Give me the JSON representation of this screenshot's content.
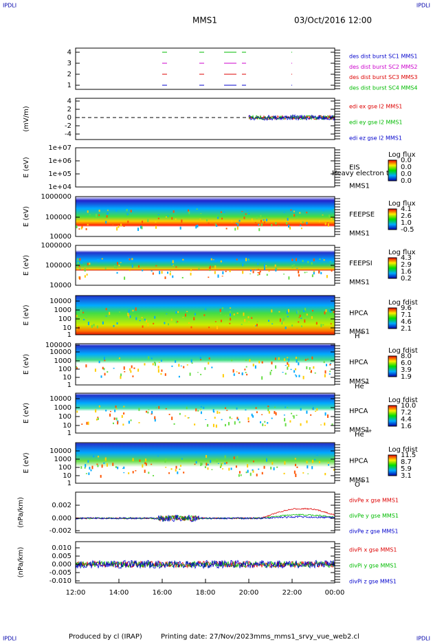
{
  "corner_labels": [
    "IPDLI",
    "IPDLI",
    "IPDLI",
    "IPDLI"
  ],
  "title": "MMS1",
  "date": "03/Oct/2016 12:00",
  "x_ticks": [
    "12:00",
    "14:00",
    "16:00",
    "18:00",
    "20:00",
    "22:00",
    "00:00"
  ],
  "panels": [
    {
      "ylabel": "",
      "yticks": [
        "4",
        "3",
        "2",
        "1"
      ],
      "legend": [
        {
          "text": "des dist burst SC1 MMS1",
          "color": "#0000cc"
        },
        {
          "text": "des dist burst SC2 MMS2",
          "color": "#cc00cc"
        },
        {
          "text": "des dist burst SC3 MMS3",
          "color": "#dd0000"
        },
        {
          "text": "des dist burst SC4 MMS4",
          "color": "#00bb00"
        }
      ]
    },
    {
      "ylabel": "(mV/m)",
      "yticks": [
        "4",
        "2",
        "0",
        "-2",
        "-4"
      ],
      "legend": [
        {
          "text": "edi ex gse l2 MMS1",
          "color": "#dd0000"
        },
        {
          "text": "edi ey gse l2 MMS1",
          "color": "#00bb00"
        },
        {
          "text": "edi ez gse l2 MMS1",
          "color": "#0000cc"
        }
      ]
    },
    {
      "ylabel": "E (eV)",
      "yticks": [
        "1e+07",
        "1e+06",
        "1e+05",
        "1e+04"
      ],
      "right_labels": [
        "EIS",
        "Heavy electron to",
        "MMS1"
      ],
      "colorbar": {
        "title": "Log flux",
        "labels": [
          "0.0",
          "0.0",
          "0.0",
          "0.0"
        ]
      }
    },
    {
      "ylabel": "E (eV)",
      "yticks": [
        "1000000",
        "100000",
        "10000"
      ],
      "right_labels": [
        "FEEPSE",
        "MMS1"
      ],
      "colorbar": {
        "title": "Log flux",
        "labels": [
          "4.1",
          "2.6",
          "1.0",
          "-0.5"
        ]
      }
    },
    {
      "ylabel": "E (eV)",
      "yticks": [
        "1000000",
        "100000",
        "10000"
      ],
      "right_labels": [
        "FEEPSI",
        "MMS1"
      ],
      "colorbar": {
        "title": "Log flux",
        "labels": [
          "4.3",
          "2.9",
          "1.6",
          "0.2"
        ]
      }
    },
    {
      "ylabel": "E (eV)",
      "yticks": [
        "10000",
        "1000",
        "100",
        "10",
        "1"
      ],
      "right_labels": [
        "HPCA",
        "MMS1"
      ],
      "species": {
        "base": "H",
        "charge": "+"
      },
      "colorbar": {
        "title": "Log fdist",
        "labels": [
          "9.6",
          "7.1",
          "4.6",
          "2.1"
        ]
      }
    },
    {
      "ylabel": "E (eV)",
      "yticks": [
        "100000",
        "10000",
        "1000",
        "100",
        "10",
        "1"
      ],
      "right_labels": [
        "HPCA",
        "MMS1"
      ],
      "species": {
        "base": "He",
        "charge": "+"
      },
      "colorbar": {
        "title": "Log fdist",
        "labels": [
          "8.0",
          "6.0",
          "3.9",
          "1.9"
        ]
      }
    },
    {
      "ylabel": "E (eV)",
      "yticks": [
        "10000",
        "1000",
        "100",
        "10",
        "1"
      ],
      "right_labels": [
        "HPCA",
        "MMS1"
      ],
      "species": {
        "base": "He",
        "charge": "++"
      },
      "colorbar": {
        "title": "Log fdist",
        "labels": [
          "10.0",
          "7.2",
          "4.4",
          "1.6"
        ]
      }
    },
    {
      "ylabel": "E (eV)",
      "yticks": [
        "10000",
        "1000",
        "100",
        "10",
        "1"
      ],
      "right_labels": [
        "HPCA",
        "MMS1"
      ],
      "species": {
        "base": "O",
        "charge": "+"
      },
      "colorbar": {
        "title": "Log fdist",
        "labels": [
          "11.5",
          "8.7",
          "5.9",
          "3.1"
        ]
      }
    },
    {
      "ylabel": "(nPa/km)",
      "yticks": [
        "0.002",
        "0.000",
        "-0.002"
      ],
      "legend": [
        {
          "text": "divPe x gse MMS1",
          "color": "#dd0000"
        },
        {
          "text": "divPe y gse MMS1",
          "color": "#00bb00"
        },
        {
          "text": "divPe z gse MMS1",
          "color": "#0000cc"
        }
      ]
    },
    {
      "ylabel": "(nPa/km)",
      "yticks": [
        "0.010",
        "0.005",
        "0.000",
        "-0.005",
        "-0.010"
      ],
      "legend": [
        {
          "text": "divPi x gse MMS1",
          "color": "#dd0000"
        },
        {
          "text": "divPi y gse MMS1",
          "color": "#00bb00"
        },
        {
          "text": "divPi z gse MMS1",
          "color": "#0000cc"
        }
      ]
    }
  ],
  "footer": [
    "Produced by cl (IRAP)",
    "Printing date: 27/Nov/2023",
    "mms_mms1_srvy_vue_web2.cl"
  ]
}
